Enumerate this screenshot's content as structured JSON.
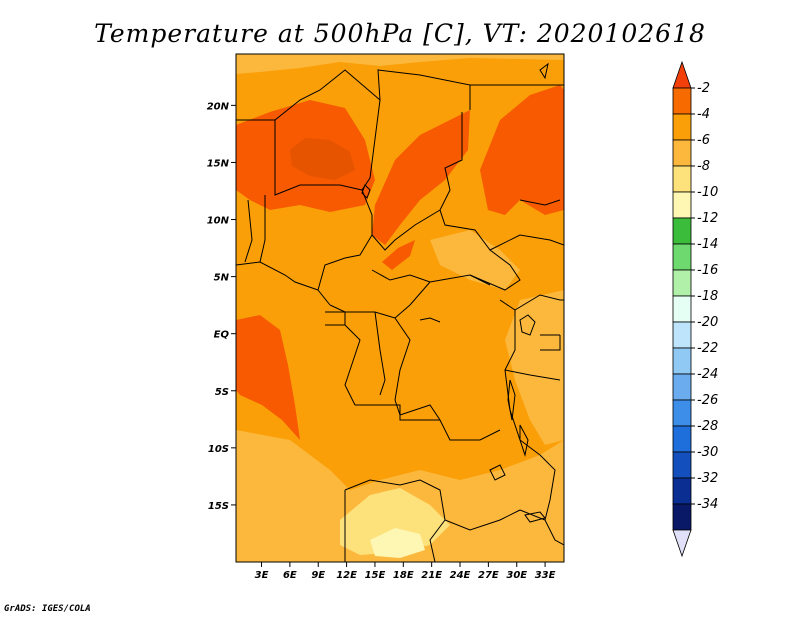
{
  "title": "Temperature at 500hPa [C], VT: 2020102618",
  "credit": "GrADS: IGES/COLA",
  "colors": {
    "c_m2_m4": "#f75a00",
    "c_m4_m6": "#fa9f08",
    "c_m6_m8": "#fcb83c",
    "c_m8_m10": "#fde27c",
    "c_m10_m12": "#fef6b3",
    "border": "#000000"
  },
  "colorbar": {
    "levels": [
      "-2",
      "-4",
      "-6",
      "-8",
      "-10",
      "-12",
      "-14",
      "-16",
      "-18",
      "-20",
      "-22",
      "-24",
      "-26",
      "-28",
      "-30",
      "-32",
      "-34"
    ],
    "colors": [
      "#f3400a",
      "#f76a00",
      "#fa9f08",
      "#fcb83c",
      "#fde27c",
      "#fef6b3",
      "#3bbd3b",
      "#6ed96e",
      "#b0f0a8",
      "#e6fff5",
      "#bde4fa",
      "#90c9f4",
      "#6aacee",
      "#3c8ee8",
      "#1e6fdc",
      "#1450bd",
      "#0a2e91",
      "#0a1868",
      "#e0e0f8"
    ]
  },
  "chart_data": {
    "type": "heatmap",
    "title": "Temperature at 500hPa [C], VT: 2020102618",
    "x_ticks": [
      "3E",
      "6E",
      "9E",
      "12E",
      "15E",
      "18E",
      "21E",
      "24E",
      "27E",
      "30E",
      "33E"
    ],
    "y_ticks": [
      "20N",
      "15N",
      "10N",
      "5N",
      "EQ",
      "5S",
      "10S",
      "15S"
    ],
    "xlim": [
      0.3,
      35.0
    ],
    "ylim": [
      -20,
      24.5
    ],
    "legend": "right colorbar"
  }
}
